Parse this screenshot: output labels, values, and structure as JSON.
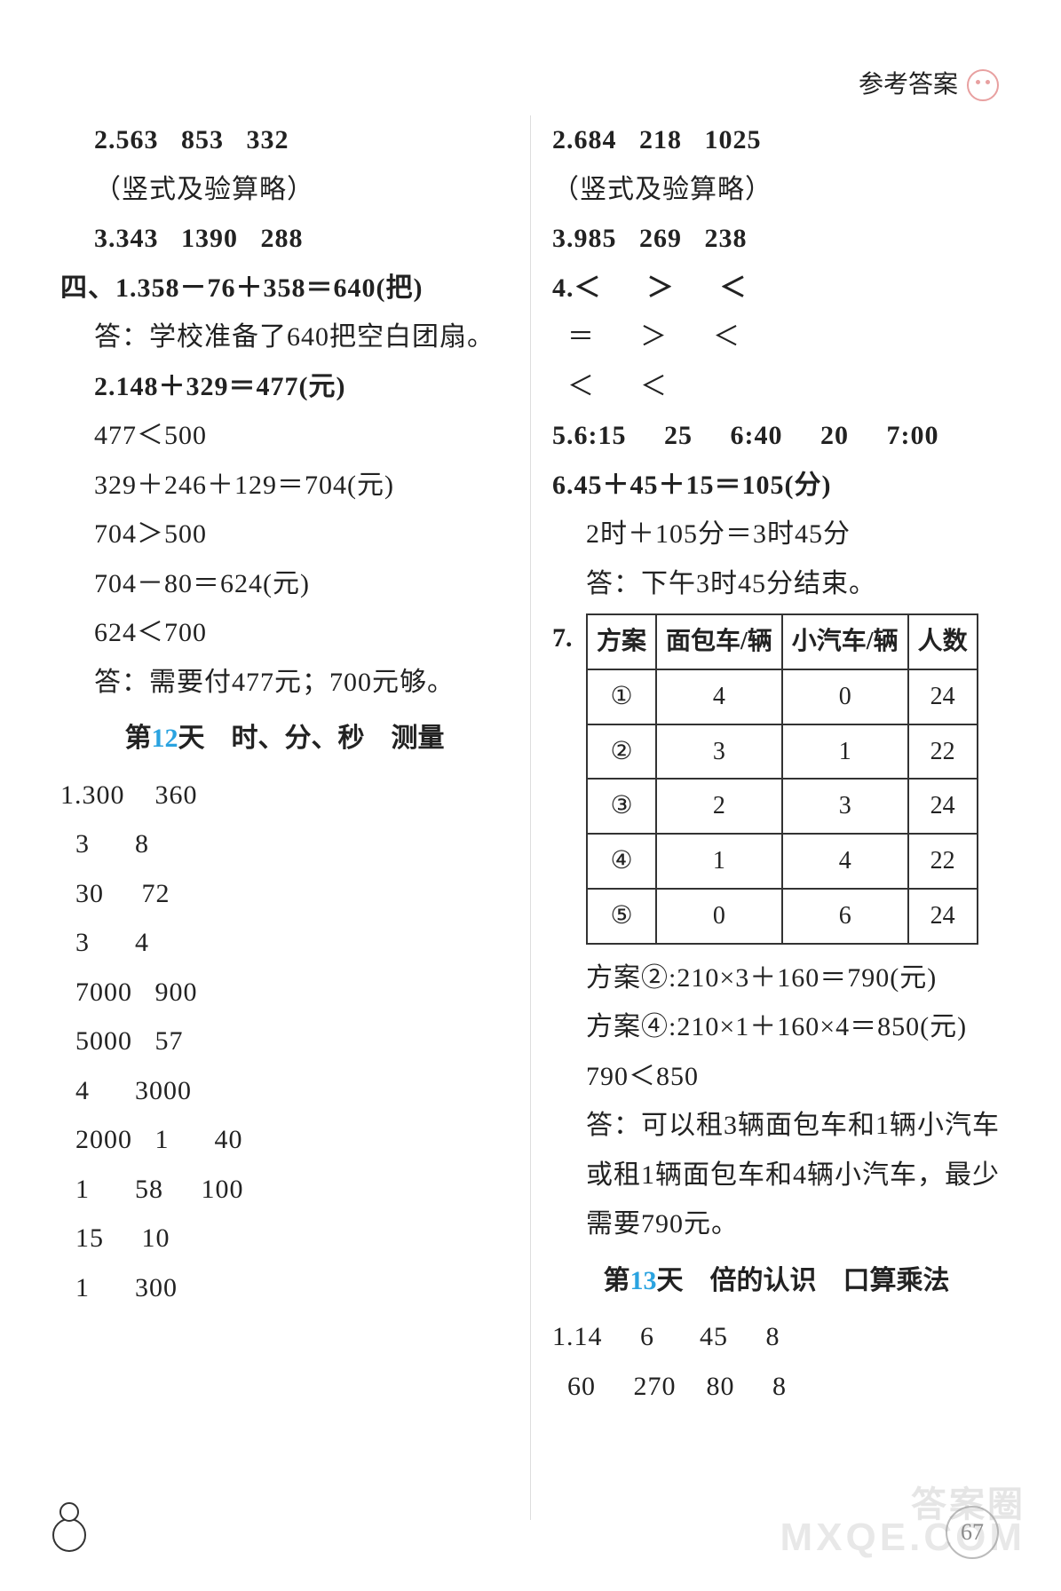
{
  "header": {
    "title": "参考答案"
  },
  "page_number": "67",
  "watermark1": "答案圈",
  "watermark2": "MXQE.COM",
  "left": {
    "l1": "2.563   853   332",
    "l2": "（竖式及验算略）",
    "l3": "3.343   1390   288",
    "l4": "四、1.358－76＋358＝640(把)",
    "l5": "答：学校准备了640把空白团扇。",
    "l6": "2.148＋329＝477(元)",
    "l7": "477＜500",
    "l8": "329＋246＋129＝704(元)",
    "l9": "704＞500",
    "l10": "704－80＝624(元)",
    "l11": "624＜700",
    "l12": "答：需要付477元；700元够。",
    "section": {
      "pre": "第",
      "num": "12",
      "post": "天　时、分、秒　测量"
    },
    "grid": [
      "1.300    360",
      "  3      8",
      "  30     72",
      "  3      4",
      "  7000   900",
      "  5000   57",
      "  4      3000",
      "  2000   1      40",
      "  1      58     100",
      "  15     10",
      "  1      300"
    ]
  },
  "right": {
    "r1": "2.684   218   1025",
    "r2": "（竖式及验算略）",
    "r3": "3.985   269   238",
    "r4": "4.＜      ＞      ＜",
    "r5": "  ＝      ＞      ＜",
    "r6": "  ＜      ＜",
    "r7": "5.6:15     25     6:40     20     7:00",
    "r8": "6.45＋45＋15＝105(分)",
    "r9": "2时＋105分＝3时45分",
    "r10": "答：下午3时45分结束。",
    "q7label": "7.",
    "table": {
      "headers": [
        "方案",
        "面包车/辆",
        "小汽车/辆",
        "人数"
      ],
      "rows": [
        [
          "①",
          "4",
          "0",
          "24"
        ],
        [
          "②",
          "3",
          "1",
          "22"
        ],
        [
          "③",
          "2",
          "3",
          "24"
        ],
        [
          "④",
          "1",
          "4",
          "22"
        ],
        [
          "⑤",
          "0",
          "6",
          "24"
        ]
      ]
    },
    "r11": "方案②:210×3＋160＝790(元)",
    "r12": "方案④:210×1＋160×4＝850(元)",
    "r13": "790＜850",
    "r14": "答：可以租3辆面包车和1辆小汽车",
    "r15": "或租1辆面包车和4辆小汽车，最少",
    "r16": "需要790元。",
    "section": {
      "pre": "第",
      "num": "13",
      "post": "天　倍的认识　口算乘法"
    },
    "r17": "1.14     6      45     8",
    "r18": "  60     270    80     8"
  }
}
